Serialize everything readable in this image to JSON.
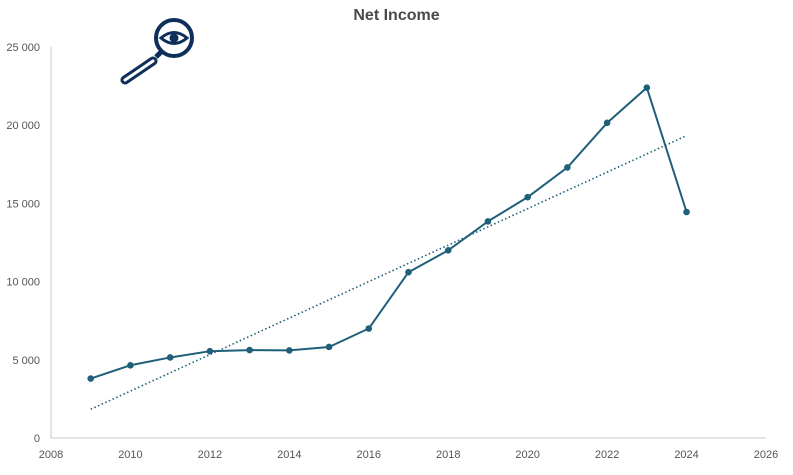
{
  "chart_data": {
    "type": "line",
    "title": "Net Income",
    "xlabel": "",
    "ylabel": "",
    "xlim": [
      2008,
      2026
    ],
    "ylim": [
      0,
      25000
    ],
    "x_ticks": [
      2008,
      2010,
      2012,
      2014,
      2016,
      2018,
      2020,
      2022,
      2024,
      2026
    ],
    "y_ticks": [
      0,
      5000,
      10000,
      15000,
      20000,
      25000
    ],
    "x_tick_labels": [
      "2008",
      "2010",
      "2012",
      "2014",
      "2016",
      "2018",
      "2020",
      "2022",
      "2024",
      "2026"
    ],
    "y_tick_labels": [
      "0",
      "5 000",
      "10 000",
      "15 000",
      "20 000",
      "25 000"
    ],
    "grid": false,
    "legend": "none",
    "series": [
      {
        "x": [
          2009,
          2010,
          2011,
          2012,
          2013,
          2014,
          2015,
          2016,
          2017,
          2018,
          2019,
          2020,
          2021,
          2022,
          2023,
          2024
        ],
        "values": [
          3800,
          4650,
          5150,
          5550,
          5620,
          5600,
          5820,
          7000,
          10600,
          12000,
          13850,
          15400,
          17300,
          20150,
          22400,
          14450
        ],
        "trendline": "linear",
        "color": "#1f5f7a"
      }
    ]
  },
  "icon": {
    "name": "magnifier-eye-icon",
    "color": "#0e2f5a"
  },
  "colors": {
    "series": "#1f5f7a",
    "axis": "#c8c8c8",
    "title": "#4a4a4a",
    "text": "#555555"
  }
}
